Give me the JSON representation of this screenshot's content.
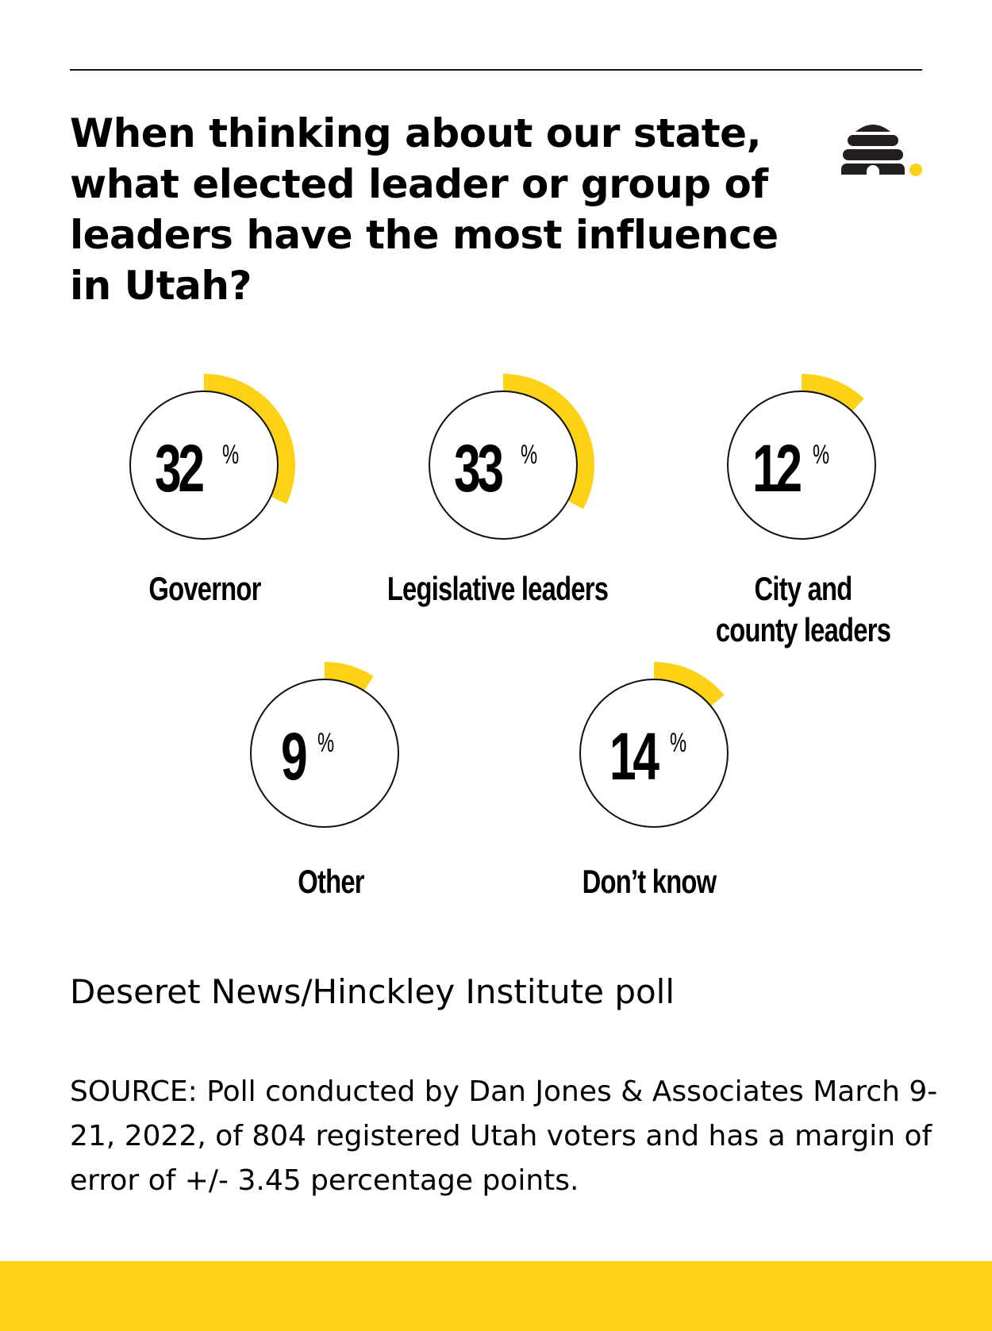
{
  "colors": {
    "accent": "#FCD116",
    "text": "#000000",
    "background": "#FFFFFF"
  },
  "header": {
    "title": "When thinking about our state, what elected leader or group of leaders have the most influence in Utah?",
    "logo_icon": "beehive-icon"
  },
  "items": [
    {
      "value": "32",
      "unit": "%",
      "label": "Governor"
    },
    {
      "value": "33",
      "unit": "%",
      "label": "Legislative leaders"
    },
    {
      "value": "12",
      "unit": "%",
      "label": "City and county leaders"
    },
    {
      "value": "9",
      "unit": "%",
      "label": "Other"
    },
    {
      "value": "14",
      "unit": "%",
      "label": "Don’t know"
    }
  ],
  "footer": {
    "poll_name": "Deseret News/Hinckley Institute poll",
    "source": "SOURCE: Poll conducted by Dan Jones & Associates March 9-21, 2022, of 804 registered Utah voters and has a margin of error of +/- 3.45 percentage points."
  },
  "chart_data": {
    "type": "pie",
    "title": "When thinking about our state, what elected leader or group of leaders have the most influence in Utah?",
    "categories": [
      "Governor",
      "Legislative leaders",
      "City and county leaders",
      "Other",
      "Don’t know"
    ],
    "values": [
      32,
      33,
      12,
      9,
      14
    ],
    "unit": "%",
    "subtitle": "Deseret News/Hinckley Institute poll",
    "annotations": [
      "SOURCE: Poll conducted by Dan Jones & Associates March 9-21, 2022, of 804 registered Utah voters and has a margin of error of +/- 3.45 percentage points."
    ]
  }
}
